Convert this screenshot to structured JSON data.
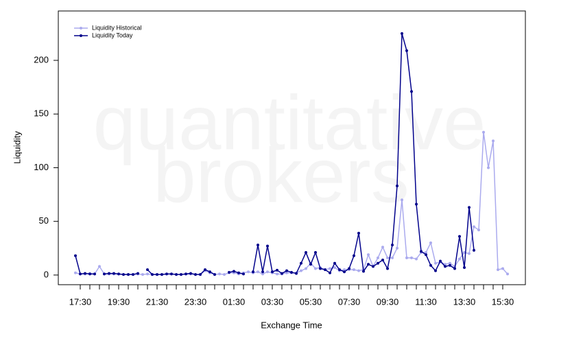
{
  "chart_data": {
    "type": "line",
    "watermark": [
      "quantitative",
      "brokers"
    ],
    "y_label": "Liquidity",
    "x_label": "Exchange Time",
    "legend": "top-left",
    "categories": [
      null,
      "17:30",
      null,
      null,
      null,
      null,
      null,
      null,
      null,
      "19:30",
      null,
      null,
      null,
      null,
      null,
      null,
      null,
      "21:30",
      null,
      null,
      null,
      null,
      null,
      null,
      null,
      "23:30",
      null,
      null,
      null,
      null,
      null,
      null,
      null,
      "01:30",
      null,
      null,
      null,
      null,
      null,
      null,
      null,
      "03:30",
      null,
      null,
      null,
      null,
      null,
      null,
      null,
      "05:30",
      null,
      null,
      null,
      null,
      null,
      null,
      null,
      "07:30",
      null,
      null,
      null,
      null,
      null,
      null,
      null,
      "09:30",
      null,
      null,
      null,
      null,
      null,
      null,
      null,
      "11:30",
      null,
      null,
      null,
      null,
      null,
      null,
      null,
      "13:30",
      null,
      null,
      null,
      null,
      null,
      null,
      null,
      "15:30",
      null
    ],
    "series": [
      {
        "name": "Liquidity Historical",
        "color": "#aaaaee",
        "values": [
          2,
          1,
          1,
          1.5,
          1,
          8,
          1,
          1,
          1,
          1,
          0.5,
          0.5,
          0.5,
          1,
          0.5,
          1,
          0.5,
          0.5,
          0.5,
          1,
          1,
          0.5,
          0.5,
          1,
          1,
          0.5,
          0.5,
          4,
          2,
          0.5,
          1,
          0.5,
          2,
          2,
          1,
          2,
          3,
          2,
          3,
          1,
          3,
          2,
          1,
          1,
          2,
          2,
          2,
          4,
          6,
          11,
          6,
          7,
          5,
          6,
          7,
          4,
          5,
          5,
          5,
          4,
          5,
          19,
          8,
          16,
          26,
          16,
          16,
          25,
          70,
          16,
          16,
          15,
          21,
          21,
          30,
          11,
          12,
          10,
          11,
          8,
          15,
          21,
          20,
          45,
          42,
          133,
          100,
          125,
          5,
          6,
          1
        ]
      },
      {
        "name": "Liquidity Today",
        "color": "#00008b",
        "values": [
          18,
          1,
          1.5,
          1,
          1,
          null,
          1,
          1.5,
          1.5,
          1,
          0.5,
          0.5,
          0.5,
          1.5,
          null,
          5,
          0.5,
          0.5,
          0.5,
          1,
          1,
          0.5,
          0.5,
          1,
          1.5,
          0.5,
          0.5,
          5,
          3,
          0.5,
          null,
          null,
          2.5,
          3.5,
          2,
          1,
          null,
          3,
          28,
          3,
          27,
          3,
          4.5,
          1.5,
          4,
          2.5,
          1.5,
          11,
          21,
          10,
          21,
          6,
          5,
          2,
          11,
          5,
          3,
          6,
          18,
          39,
          3.5,
          10,
          8,
          11,
          14,
          6,
          28,
          83,
          225,
          209,
          171,
          66,
          22,
          19,
          9,
          4,
          13,
          8,
          9,
          6,
          36,
          7,
          63,
          23,
          null,
          null,
          null,
          null,
          null,
          null,
          null
        ]
      }
    ],
    "ylim": [
      -9,
      246
    ],
    "yticks": [
      0,
      50,
      100,
      150,
      200
    ]
  }
}
